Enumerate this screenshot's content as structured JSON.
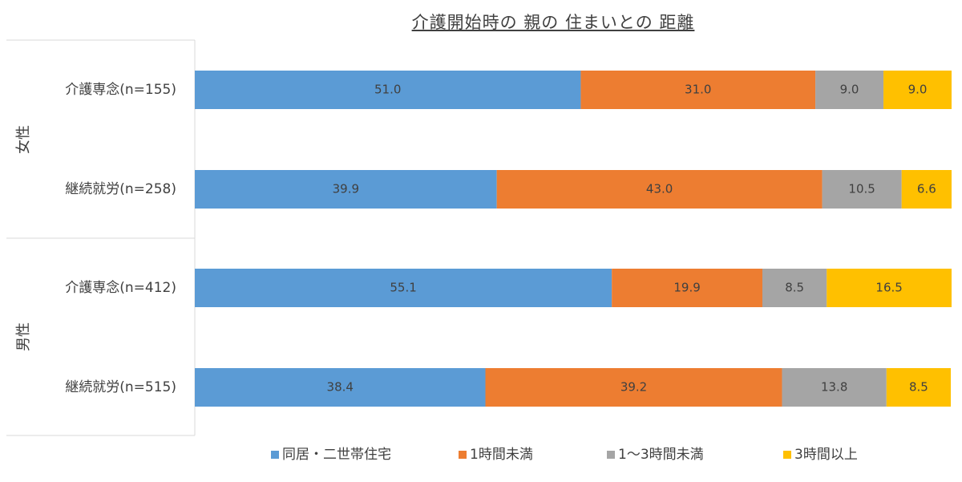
{
  "chart_data": {
    "type": "bar",
    "orientation": "horizontal",
    "stacked": true,
    "title": "介護開始時の 親の 住まいとの 距離",
    "groups": [
      {
        "label": "女性",
        "categories": [
          "介護専念(n=155)",
          "継続就労(n=258)"
        ]
      },
      {
        "label": "男性",
        "categories": [
          "介護専念(n=412)",
          "継続就労(n=515)"
        ]
      }
    ],
    "categories": [
      "介護専念(n=155)",
      "継続就労(n=258)",
      "介護専念(n=412)",
      "継続就労(n=515)"
    ],
    "series": [
      {
        "name": "同居・二世帯住宅",
        "color": "#5B9BD5",
        "values": [
          51.0,
          39.9,
          55.1,
          38.4
        ]
      },
      {
        "name": "1時間未満",
        "color": "#ED7D31",
        "values": [
          31.0,
          43.0,
          19.9,
          39.2
        ]
      },
      {
        "name": "1～3時間未満",
        "color": "#A5A5A5",
        "values": [
          9.0,
          10.5,
          8.5,
          13.8
        ]
      },
      {
        "name": "3時間以上",
        "color": "#FFC000",
        "values": [
          9.0,
          6.6,
          16.5,
          8.5
        ]
      }
    ],
    "xlim": [
      0,
      100
    ],
    "grid": false,
    "legend_position": "bottom"
  }
}
